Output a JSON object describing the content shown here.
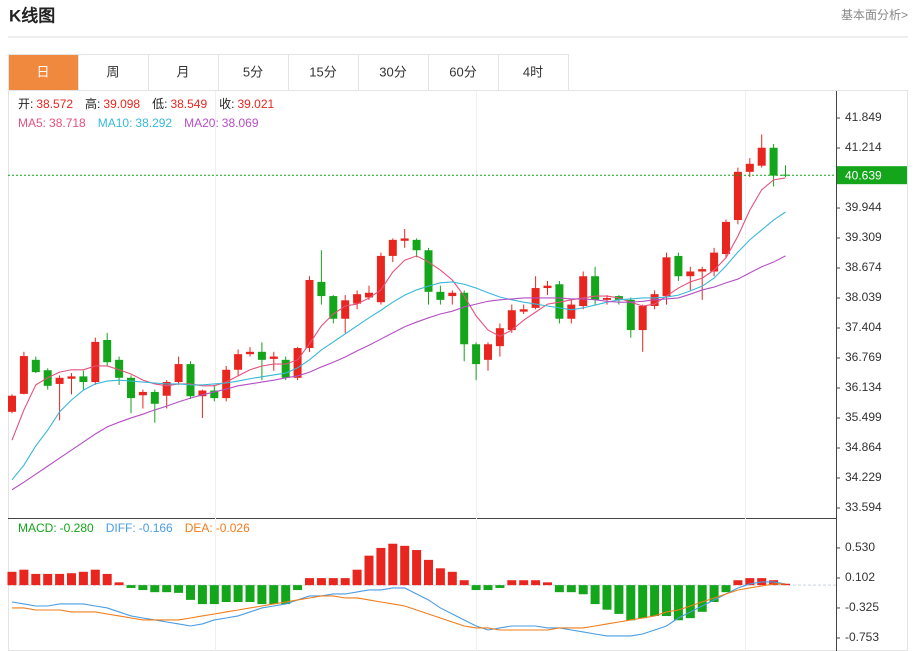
{
  "header": {
    "title": "K线图",
    "link": "基本面分析>"
  },
  "tabs": [
    "日",
    "周",
    "月",
    "5分",
    "15分",
    "30分",
    "60分",
    "4时"
  ],
  "chart_data": [
    {
      "type": "candlestick",
      "info": [
        {
          "label": "开:",
          "value": "38.572"
        },
        {
          "label": "高:",
          "value": "39.098"
        },
        {
          "label": "低:",
          "value": "38.549"
        },
        {
          "label": "收:",
          "value": "39.021"
        }
      ],
      "open": [
        35.63,
        36.01,
        36.73,
        36.51,
        36.22,
        36.33,
        36.38,
        36.26,
        37.15,
        36.73,
        36.35,
        35.98,
        36.05,
        35.97,
        36.26,
        36.64,
        35.96,
        36.08,
        35.92,
        36.52,
        36.85,
        36.9,
        36.75,
        36.73,
        36.35,
        36.98,
        38.38,
        38.08,
        37.6,
        37.92,
        38.05,
        37.95,
        38.93,
        39.25,
        39.27,
        39.05,
        38.17,
        38.08,
        38.15,
        37.06,
        36.73,
        37.02,
        37.36,
        37.75,
        37.83,
        38.25,
        38.33,
        37.6,
        37.87,
        38.5,
        38.0,
        38.08,
        38.0,
        37.36,
        37.87,
        38.08,
        38.93,
        38.5,
        38.6,
        38.6,
        38.97,
        39.69,
        40.71,
        40.84,
        41.22,
        40.65
      ],
      "high": [
        36.0,
        36.9,
        36.8,
        36.55,
        36.4,
        36.45,
        36.5,
        37.2,
        37.3,
        36.8,
        36.4,
        36.1,
        36.1,
        36.3,
        36.8,
        36.7,
        36.1,
        36.2,
        36.6,
        36.95,
        37.0,
        37.1,
        36.9,
        36.8,
        37.0,
        38.5,
        39.05,
        38.1,
        38.1,
        38.2,
        38.3,
        39.0,
        39.3,
        39.5,
        39.3,
        39.1,
        38.3,
        38.2,
        38.2,
        37.1,
        37.1,
        37.5,
        37.9,
        37.9,
        38.5,
        38.4,
        38.4,
        38.0,
        38.6,
        38.7,
        38.1,
        38.1,
        38.05,
        37.9,
        38.2,
        39.0,
        39.0,
        38.7,
        38.7,
        39.1,
        39.7,
        40.8,
        41.0,
        41.5,
        41.3,
        40.85
      ],
      "low": [
        35.6,
        36.0,
        36.45,
        36.1,
        35.45,
        36.0,
        36.1,
        36.2,
        36.6,
        36.2,
        35.6,
        35.7,
        35.4,
        35.7,
        36.2,
        35.9,
        35.5,
        35.85,
        35.85,
        36.4,
        36.8,
        36.3,
        36.5,
        36.3,
        36.3,
        36.9,
        37.9,
        37.5,
        37.3,
        37.8,
        38.0,
        37.9,
        38.8,
        39.1,
        38.9,
        37.9,
        37.9,
        37.9,
        36.7,
        36.3,
        36.5,
        36.8,
        37.3,
        37.7,
        37.8,
        38.1,
        37.5,
        37.5,
        37.8,
        37.9,
        37.9,
        37.9,
        37.2,
        36.9,
        37.8,
        37.9,
        38.4,
        38.2,
        38.0,
        38.5,
        38.9,
        39.6,
        40.6,
        40.8,
        40.4,
        40.6
      ],
      "close": [
        35.97,
        36.81,
        36.47,
        36.18,
        36.35,
        36.38,
        36.26,
        37.11,
        36.68,
        36.35,
        35.92,
        36.05,
        35.8,
        36.26,
        36.64,
        35.96,
        36.08,
        35.92,
        36.52,
        36.85,
        36.9,
        36.73,
        36.8,
        36.35,
        36.98,
        38.42,
        38.08,
        37.6,
        37.99,
        38.12,
        38.15,
        38.93,
        39.27,
        39.3,
        39.05,
        38.17,
        38.0,
        38.15,
        37.06,
        36.64,
        37.06,
        37.4,
        37.78,
        37.8,
        38.25,
        38.3,
        37.6,
        37.9,
        38.5,
        38.0,
        38.04,
        38.0,
        37.36,
        37.87,
        38.12,
        38.9,
        38.5,
        38.6,
        38.65,
        39.0,
        39.65,
        40.71,
        40.88,
        41.22,
        40.63,
        40.64
      ],
      "up_color": "#e8251f",
      "down_color": "#13a51a",
      "series": [
        {
          "name": "MA5:",
          "legend": "38.718",
          "color": "#e5517c",
          "values": [
            35.03,
            35.67,
            36.2,
            36.35,
            36.47,
            36.52,
            36.52,
            36.6,
            36.6,
            36.52,
            36.43,
            36.3,
            36.22,
            36.18,
            36.22,
            36.22,
            36.18,
            36.18,
            36.26,
            36.39,
            36.52,
            36.6,
            36.64,
            36.64,
            36.73,
            37.07,
            37.45,
            37.7,
            37.87,
            37.91,
            38.04,
            38.21,
            38.59,
            38.84,
            38.93,
            38.8,
            38.63,
            38.42,
            38.08,
            37.66,
            37.36,
            37.23,
            37.36,
            37.57,
            37.74,
            37.91,
            37.95,
            38.0,
            38.04,
            38.08,
            38.08,
            38.04,
            37.95,
            37.87,
            37.91,
            38.08,
            38.25,
            38.38,
            38.46,
            38.63,
            38.89,
            39.35,
            39.9,
            40.33,
            40.54,
            40.58
          ]
        },
        {
          "name": "MA10:",
          "legend": "38.292",
          "color": "#38b8d8",
          "values": [
            34.19,
            34.5,
            34.91,
            35.24,
            35.63,
            35.88,
            36.09,
            36.22,
            36.28,
            36.3,
            36.28,
            36.26,
            36.24,
            36.22,
            36.22,
            36.2,
            36.2,
            36.22,
            36.24,
            36.28,
            36.33,
            36.37,
            36.41,
            36.45,
            36.56,
            36.73,
            36.94,
            37.11,
            37.28,
            37.45,
            37.62,
            37.78,
            37.95,
            38.1,
            38.21,
            38.29,
            38.36,
            38.38,
            38.33,
            38.25,
            38.15,
            38.06,
            38.0,
            37.95,
            37.91,
            37.87,
            37.83,
            37.79,
            37.83,
            37.89,
            37.95,
            38.0,
            38.02,
            38.04,
            38.04,
            38.06,
            38.1,
            38.19,
            38.29,
            38.46,
            38.72,
            39.01,
            39.27,
            39.48,
            39.69,
            39.86
          ]
        },
        {
          "name": "MA20:",
          "legend": "38.069",
          "color": "#b54fc4",
          "values": [
            33.98,
            34.14,
            34.31,
            34.48,
            34.65,
            34.82,
            34.99,
            35.16,
            35.31,
            35.41,
            35.5,
            35.58,
            35.67,
            35.75,
            35.84,
            35.92,
            35.99,
            36.05,
            36.11,
            36.18,
            36.22,
            36.26,
            36.3,
            36.35,
            36.39,
            36.47,
            36.58,
            36.68,
            36.79,
            36.92,
            37.04,
            37.17,
            37.3,
            37.43,
            37.53,
            37.62,
            37.7,
            37.76,
            37.85,
            37.91,
            37.97,
            38.0,
            38.02,
            38.04,
            38.04,
            38.04,
            38.04,
            38.02,
            38.02,
            38.0,
            37.97,
            37.95,
            37.95,
            37.97,
            38.0,
            38.02,
            38.04,
            38.12,
            38.21,
            38.27,
            38.36,
            38.44,
            38.57,
            38.7,
            38.8,
            38.93
          ]
        }
      ],
      "last_price": 40.639,
      "last_price_color": "#13a51a",
      "ylim": [
        33.382,
        42.4
      ],
      "yticks": [
        41.849,
        41.214,
        40.639,
        39.944,
        39.309,
        38.674,
        38.039,
        37.404,
        36.769,
        36.134,
        35.499,
        34.864,
        34.229,
        33.594
      ]
    },
    {
      "type": "macd",
      "histogram": {
        "name": "MACD:",
        "legend": "-0.280",
        "color": "#13a51a",
        "values": [
          0.19,
          0.22,
          0.16,
          0.16,
          0.16,
          0.17,
          0.19,
          0.22,
          0.16,
          0.04,
          -0.04,
          -0.07,
          -0.1,
          -0.1,
          -0.11,
          -0.21,
          -0.27,
          -0.27,
          -0.24,
          -0.24,
          -0.24,
          -0.27,
          -0.27,
          -0.27,
          -0.07,
          0.1,
          0.1,
          0.1,
          0.1,
          0.22,
          0.42,
          0.53,
          0.59,
          0.56,
          0.5,
          0.36,
          0.24,
          0.19,
          0.07,
          -0.07,
          -0.07,
          -0.04,
          0.07,
          0.07,
          0.07,
          0.04,
          -0.1,
          -0.1,
          -0.13,
          -0.27,
          -0.35,
          -0.41,
          -0.5,
          -0.47,
          -0.44,
          -0.44,
          -0.5,
          -0.47,
          -0.38,
          -0.24,
          -0.1,
          0.07,
          0.1,
          0.1,
          0.07,
          0.02
        ]
      },
      "up_color": "#e8251f",
      "down_color": "#13a51a",
      "series": [
        {
          "name": "DIFF:",
          "legend": "-0.166",
          "color": "#4a9de3",
          "values": [
            -0.24,
            -0.268,
            -0.297,
            -0.297,
            -0.268,
            -0.268,
            -0.268,
            -0.297,
            -0.325,
            -0.382,
            -0.439,
            -0.468,
            -0.496,
            -0.525,
            -0.553,
            -0.582,
            -0.553,
            -0.496,
            -0.468,
            -0.439,
            -0.382,
            -0.325,
            -0.297,
            -0.268,
            -0.211,
            -0.154,
            -0.154,
            -0.126,
            -0.126,
            -0.097,
            -0.069,
            -0.069,
            -0.04,
            -0.04,
            -0.126,
            -0.211,
            -0.325,
            -0.411,
            -0.496,
            -0.582,
            -0.639,
            -0.61,
            -0.582,
            -0.582,
            -0.582,
            -0.61,
            -0.61,
            -0.639,
            -0.667,
            -0.696,
            -0.724,
            -0.724,
            -0.724,
            -0.696,
            -0.639,
            -0.582,
            -0.468,
            -0.382,
            -0.297,
            -0.211,
            -0.126,
            -0.04,
            0.017,
            0.045,
            0.045,
            0.017
          ]
        },
        {
          "name": "DEA:",
          "legend": "-0.026",
          "color": "#f07c1c",
          "values": [
            -0.325,
            -0.325,
            -0.354,
            -0.354,
            -0.354,
            -0.382,
            -0.382,
            -0.382,
            -0.411,
            -0.439,
            -0.468,
            -0.496,
            -0.496,
            -0.496,
            -0.496,
            -0.468,
            -0.439,
            -0.411,
            -0.382,
            -0.354,
            -0.325,
            -0.297,
            -0.268,
            -0.24,
            -0.211,
            -0.183,
            -0.154,
            -0.154,
            -0.183,
            -0.183,
            -0.211,
            -0.24,
            -0.268,
            -0.297,
            -0.354,
            -0.411,
            -0.468,
            -0.525,
            -0.582,
            -0.61,
            -0.61,
            -0.639,
            -0.639,
            -0.639,
            -0.639,
            -0.639,
            -0.61,
            -0.61,
            -0.61,
            -0.582,
            -0.553,
            -0.525,
            -0.496,
            -0.468,
            -0.439,
            -0.382,
            -0.354,
            -0.297,
            -0.24,
            -0.183,
            -0.126,
            -0.069,
            -0.04,
            -0.012,
            0.017,
            0.017
          ]
        }
      ],
      "ylim": [
        -0.924,
        0.928
      ],
      "yticks": [
        {
          "value": 0.53,
          "label": "0.530"
        },
        0.102,
        -0.325,
        -0.753
      ]
    }
  ]
}
